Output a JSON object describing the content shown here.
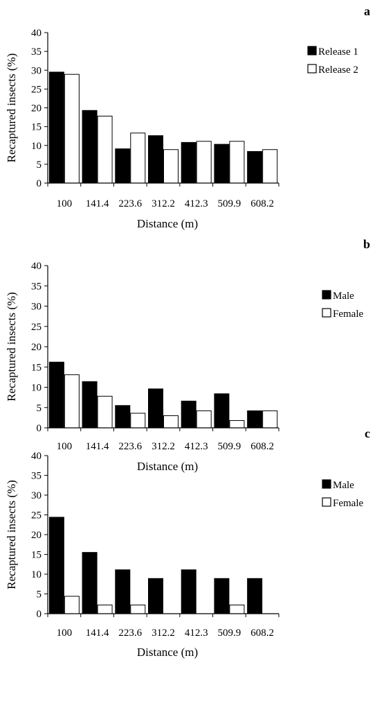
{
  "chart_data": [
    {
      "panel_label": "a",
      "type": "bar",
      "categories": [
        "100",
        "141.4",
        "223.6",
        "312.2",
        "412.3",
        "509.9",
        "608.2"
      ],
      "series": [
        {
          "name": "Release 1",
          "values": [
            29.5,
            19.3,
            9.1,
            12.6,
            10.8,
            10.3,
            8.4
          ],
          "fill": "#000000"
        },
        {
          "name": "Release 2",
          "values": [
            28.9,
            17.8,
            13.3,
            8.9,
            11.1,
            11.1,
            8.9
          ],
          "fill": "#ffffff"
        }
      ],
      "xlabel": "Distance (m)",
      "ylabel": "Recaptured insects (%)",
      "ylim": [
        0,
        40
      ],
      "yticks": [
        "0",
        "5",
        "10",
        "15",
        "20",
        "25",
        "30",
        "35",
        "40"
      ],
      "legend_position": "top-right"
    },
    {
      "panel_label": "b",
      "type": "bar",
      "categories": [
        "100",
        "141.4",
        "223.6",
        "312.2",
        "412.3",
        "509.9",
        "608.2"
      ],
      "series": [
        {
          "name": "Male",
          "values": [
            16.2,
            11.4,
            5.5,
            9.6,
            6.6,
            8.4,
            4.2
          ],
          "fill": "#000000"
        },
        {
          "name": "Female",
          "values": [
            13.1,
            7.8,
            3.6,
            3.0,
            4.2,
            1.8,
            4.2
          ],
          "fill": "#ffffff"
        }
      ],
      "xlabel": "Distance (m)",
      "ylabel": "Recaptured insects (%)",
      "ylim": [
        0,
        40
      ],
      "yticks": [
        "0",
        "5",
        "10",
        "15",
        "20",
        "25",
        "30",
        "35",
        "40"
      ],
      "legend_position": "top-right"
    },
    {
      "panel_label": "c",
      "type": "bar",
      "categories": [
        "100",
        "141.4",
        "223.6",
        "312.2",
        "412.3",
        "509.9",
        "608.2"
      ],
      "series": [
        {
          "name": "Male",
          "values": [
            24.4,
            15.5,
            11.1,
            8.9,
            11.1,
            8.9,
            8.9
          ],
          "fill": "#000000"
        },
        {
          "name": "Female",
          "values": [
            4.4,
            2.2,
            2.2,
            0,
            0,
            2.2,
            0
          ],
          "fill": "#ffffff"
        }
      ],
      "xlabel": "Distance (m)",
      "ylabel": "Recaptured insects (%)",
      "ylim": [
        0,
        40
      ],
      "yticks": [
        "0",
        "5",
        "10",
        "15",
        "20",
        "25",
        "30",
        "35",
        "40"
      ],
      "legend_position": "top-right"
    }
  ]
}
